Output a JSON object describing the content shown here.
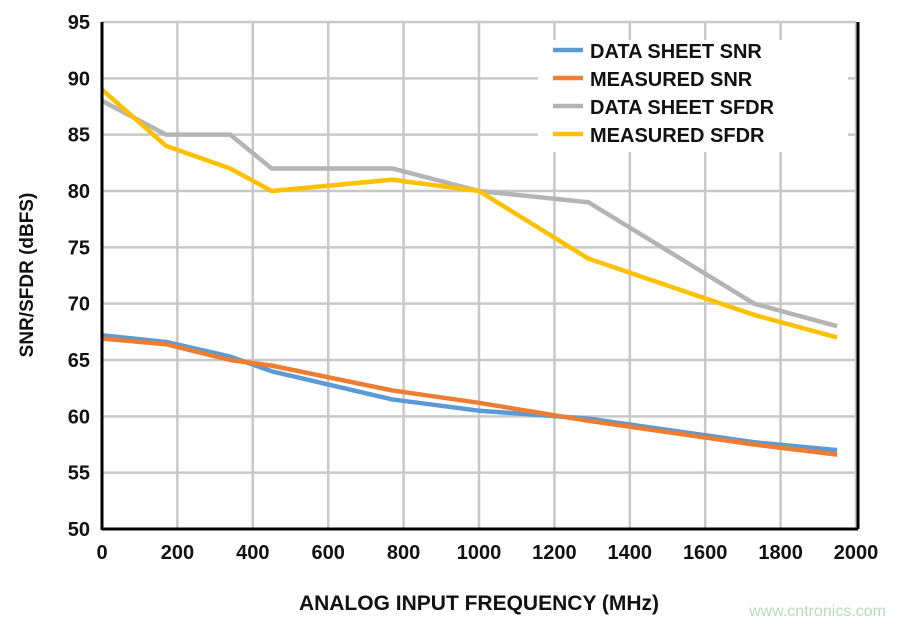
{
  "chart_data": {
    "type": "line",
    "title": "",
    "xlabel": "ANALOG INPUT FREQUENCY (MHz)",
    "ylabel": "SNR/SFDR (dBFS)",
    "xlim": [
      0,
      2000
    ],
    "ylim": [
      50,
      95
    ],
    "xticks": [
      0,
      200,
      400,
      600,
      800,
      1000,
      1200,
      1400,
      1600,
      1800,
      2000
    ],
    "yticks": [
      50,
      55,
      60,
      65,
      70,
      75,
      80,
      85,
      90,
      95
    ],
    "grid": true,
    "legend_position": "top-right",
    "x": [
      0,
      170,
      340,
      450,
      770,
      1000,
      1290,
      1730,
      1950
    ],
    "series": [
      {
        "name": "DATA SHEET SNR",
        "color": "#5b9bd5",
        "values": [
          67.2,
          66.6,
          65.3,
          64.0,
          61.5,
          60.5,
          59.8,
          57.7,
          57.0
        ]
      },
      {
        "name": "MEASURED SNR",
        "color": "#ed7d31",
        "values": [
          66.9,
          66.4,
          65.0,
          64.5,
          62.3,
          61.2,
          59.6,
          57.5,
          56.6
        ]
      },
      {
        "name": "DATA SHEET SFDR",
        "color": "#b4b4b4",
        "values": [
          88,
          85,
          85,
          82,
          82,
          80,
          79,
          70,
          68
        ]
      },
      {
        "name": "MEASURED SFDR",
        "color": "#ffc000",
        "values": [
          89,
          84,
          82,
          80,
          81,
          80,
          74,
          69,
          67
        ]
      }
    ]
  },
  "watermark": "www.cntronics.com"
}
